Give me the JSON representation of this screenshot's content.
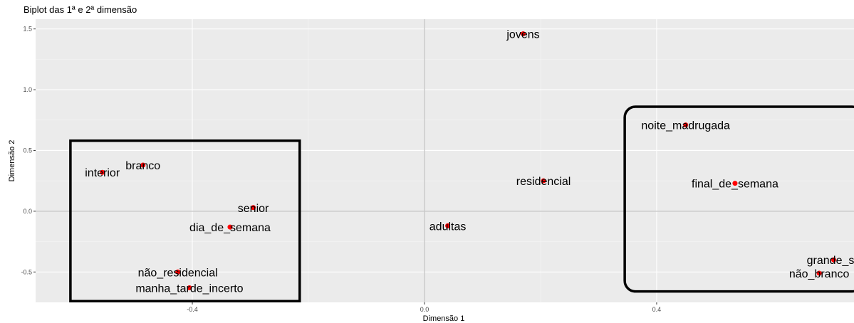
{
  "chart_data": {
    "type": "scatter",
    "title": "Biplot das 1ª e 2ª dimensão",
    "xlabel": "Dimensão 1",
    "ylabel": "Dimensão 2",
    "xlim": [
      -0.67,
      0.74
    ],
    "ylim": [
      -0.75,
      1.58
    ],
    "x_ticks": [
      {
        "value": -0.4,
        "label": "-0.4"
      },
      {
        "value": 0.0,
        "label": "0.0"
      },
      {
        "value": 0.4,
        "label": "0.4"
      }
    ],
    "y_ticks": [
      {
        "value": 1.5,
        "label": "1.5"
      },
      {
        "value": 1.0,
        "label": "1.0"
      },
      {
        "value": 0.5,
        "label": "0.5"
      },
      {
        "value": 0.0,
        "label": "0.0"
      },
      {
        "value": -0.5,
        "label": "-0.5"
      }
    ],
    "grid": true,
    "point_color": "#ff0000",
    "points": [
      {
        "label": "jovens",
        "x": 0.17,
        "y": 1.46
      },
      {
        "label": "noite_madrugada",
        "x": 0.45,
        "y": 0.71
      },
      {
        "label": "residencial",
        "x": 0.205,
        "y": 0.25
      },
      {
        "label": "final_de_semana",
        "x": 0.535,
        "y": 0.23
      },
      {
        "label": "adultas",
        "x": 0.04,
        "y": -0.12
      },
      {
        "label": "interior",
        "x": -0.555,
        "y": 0.32
      },
      {
        "label": "branco",
        "x": -0.485,
        "y": 0.38
      },
      {
        "label": "senior",
        "x": -0.295,
        "y": 0.03
      },
      {
        "label": "dia_de_semana",
        "x": -0.335,
        "y": -0.13
      },
      {
        "label": "não_residencial",
        "x": -0.425,
        "y": -0.5
      },
      {
        "label": "manha_tarde_incerto",
        "x": -0.405,
        "y": -0.63
      },
      {
        "label": "grande_sp",
        "x": 0.705,
        "y": -0.4
      },
      {
        "label": "não_branco",
        "x": 0.68,
        "y": -0.51
      }
    ],
    "annotations": [
      {
        "type": "rect",
        "x0": -0.61,
        "x1": -0.215,
        "y0": -0.74,
        "y1": 0.58,
        "rounded": false
      },
      {
        "type": "rect",
        "x0": 0.345,
        "x1": 0.755,
        "y0": -0.66,
        "y1": 0.86,
        "rounded": true
      }
    ]
  }
}
